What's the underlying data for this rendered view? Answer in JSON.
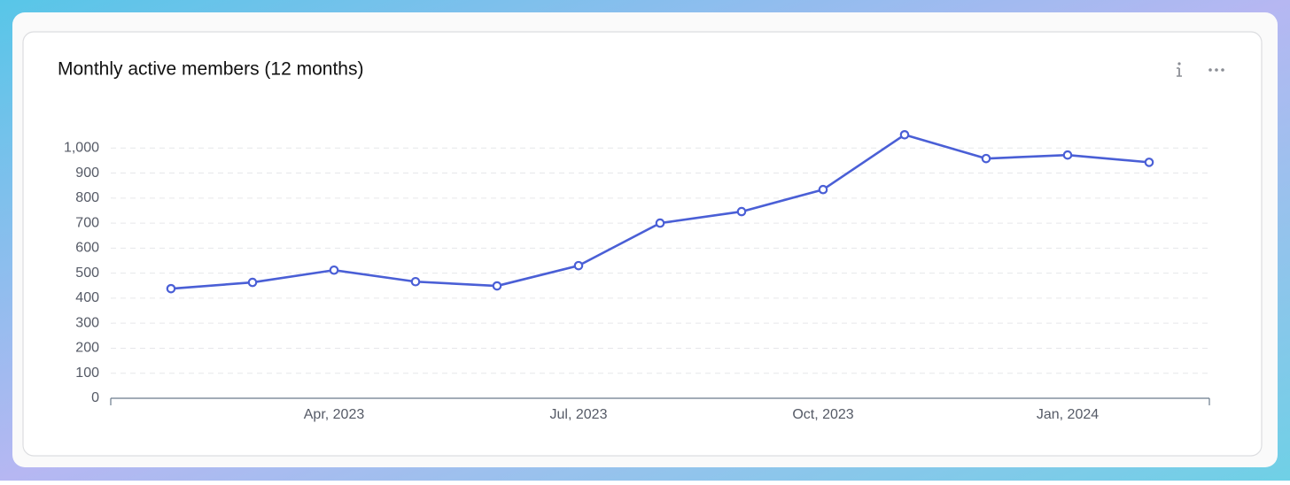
{
  "chart_data": {
    "type": "line",
    "title": "Monthly active members (12 months)",
    "categories": [
      null,
      null,
      "Apr, 2023",
      null,
      null,
      "Jul, 2023",
      null,
      null,
      "Oct, 2023",
      null,
      null,
      "Jan, 2024",
      null
    ],
    "series": [
      {
        "name": "Monthly active members",
        "color": "#4a5fd6",
        "values": [
          438,
          463,
          512,
          466,
          449,
          530,
          700,
          746,
          834,
          1053,
          958,
          972,
          943
        ]
      }
    ],
    "ylim": [
      0,
      1100
    ],
    "yticks": [
      0,
      100,
      200,
      300,
      400,
      500,
      600,
      700,
      800,
      900,
      {
        "value": 1000,
        "label": "1,000"
      }
    ],
    "grid": true
  }
}
